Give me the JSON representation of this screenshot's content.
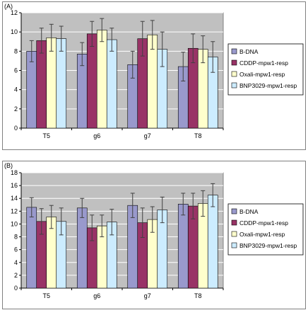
{
  "colors": {
    "plot_bg": "#c0c0c0",
    "panel_border": "#808080",
    "gridline": "#ffffff",
    "axis": "#000000",
    "error_bar": "#404040"
  },
  "chart_data": [
    {
      "type": "bar",
      "panel_label": "(A)",
      "title": "",
      "xlabel": "",
      "ylabel": "",
      "categories": [
        "T5",
        "g6",
        "g7",
        "T8"
      ],
      "ylim": [
        0,
        12
      ],
      "yticks": [
        0,
        2,
        4,
        6,
        8,
        10,
        12
      ],
      "grid": true,
      "legend_position": "right",
      "series": [
        {
          "name": "B-DNA",
          "color": "#9999cc",
          "values": [
            8.0,
            7.7,
            6.6,
            6.4
          ],
          "errors": [
            1.1,
            1.2,
            1.4,
            1.5
          ]
        },
        {
          "name": "CDDP-mpw1-resp",
          "color": "#993366",
          "values": [
            9.1,
            9.8,
            9.3,
            8.3
          ],
          "errors": [
            1.3,
            1.3,
            1.8,
            1.5
          ]
        },
        {
          "name": "Oxali-mpw1-resp",
          "color": "#ffffcc",
          "values": [
            9.4,
            10.2,
            9.7,
            8.2
          ],
          "errors": [
            1.4,
            1.2,
            1.5,
            1.4
          ]
        },
        {
          "name": "BNP3029-mpw1-resp",
          "color": "#ccecff",
          "values": [
            9.3,
            9.2,
            8.2,
            7.4
          ],
          "errors": [
            1.3,
            1.2,
            1.8,
            1.6
          ]
        }
      ]
    },
    {
      "type": "bar",
      "panel_label": "(B)",
      "title": "",
      "xlabel": "",
      "ylabel": "",
      "categories": [
        "T5",
        "g6",
        "g7",
        "T8"
      ],
      "ylim": [
        0,
        18
      ],
      "yticks": [
        0,
        2,
        4,
        6,
        8,
        10,
        12,
        14,
        16,
        18
      ],
      "grid": true,
      "legend_position": "right",
      "series": [
        {
          "name": "B-DNA",
          "color": "#9999cc",
          "values": [
            12.6,
            12.5,
            12.9,
            13.1
          ],
          "errors": [
            1.5,
            1.5,
            1.9,
            1.7
          ]
        },
        {
          "name": "CDDP-mpw1-resp",
          "color": "#993366",
          "values": [
            10.4,
            9.4,
            10.2,
            12.8
          ],
          "errors": [
            2.0,
            2.0,
            2.3,
            2.0
          ]
        },
        {
          "name": "Oxali-mpw1-resp",
          "color": "#ffffcc",
          "values": [
            11.1,
            9.7,
            10.7,
            13.2
          ],
          "errors": [
            1.8,
            1.7,
            2.0,
            2.0
          ]
        },
        {
          "name": "BNP3029-mpw1-resp",
          "color": "#ccecff",
          "values": [
            10.4,
            10.3,
            12.2,
            14.5
          ],
          "errors": [
            2.1,
            2.0,
            2.0,
            1.8
          ]
        }
      ]
    }
  ]
}
